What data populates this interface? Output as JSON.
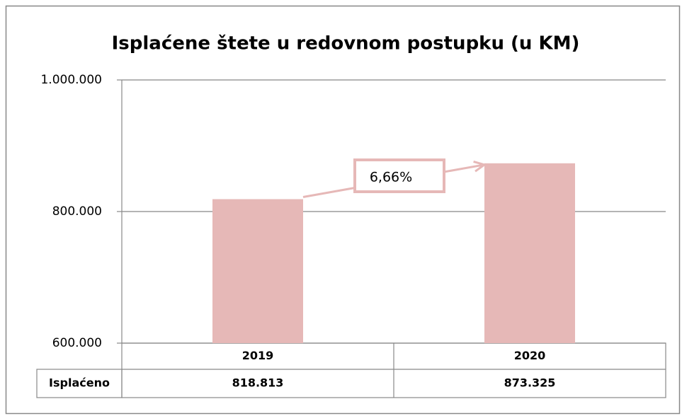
{
  "chart_data": {
    "type": "bar",
    "title": "Isplaćene štete u redovnom postupku  (u KM)",
    "categories": [
      "2019",
      "2020"
    ],
    "series": [
      {
        "name": "Isplaćeno",
        "color": "#e6b8b7",
        "values": [
          818813,
          873325
        ],
        "value_labels": [
          "818.813",
          "873.325"
        ]
      }
    ],
    "ylim": [
      600000,
      1000000
    ],
    "yticks": [
      {
        "value": 600000,
        "label": "600.000"
      },
      {
        "value": 800000,
        "label": "800.000"
      },
      {
        "value": 1000000,
        "label": "1.000.000"
      }
    ],
    "grid": true,
    "annotation": "6,66%"
  }
}
